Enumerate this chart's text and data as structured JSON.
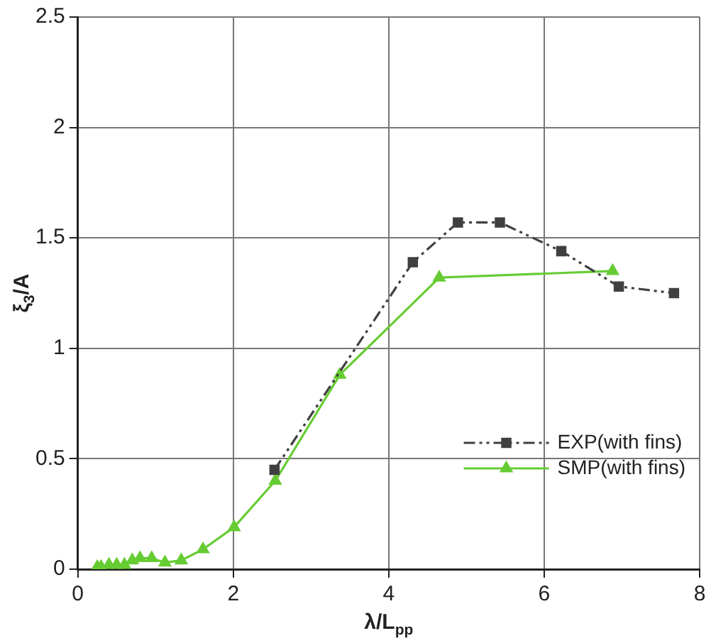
{
  "chart_data": {
    "type": "line",
    "xlabel": "λ/L$_{pp}$",
    "ylabel": "ξ$_{3}$/A",
    "xlim": [
      0,
      8
    ],
    "xticks": [
      0,
      2,
      4,
      6,
      8
    ],
    "ylim": [
      0,
      2.5
    ],
    "yticks": [
      0,
      0.5,
      1,
      1.5,
      2,
      2.5
    ],
    "grid": true,
    "legend": "bottom right",
    "series": [
      {
        "name": "EXP(with fins)",
        "color": "#404040",
        "marker": "square",
        "line_style": "dashed",
        "x": [
          2.53,
          4.31,
          4.89,
          5.43,
          6.22,
          6.96,
          7.67
        ],
        "values": [
          0.45,
          1.39,
          1.57,
          1.57,
          1.44,
          1.28,
          1.25
        ]
      },
      {
        "name": "SMP(with fins)",
        "color": "#66cc33",
        "marker": "triangle",
        "line_style": "solid",
        "x": [
          0.25,
          0.3,
          0.4,
          0.5,
          0.6,
          0.7,
          0.8,
          0.95,
          1.12,
          1.33,
          1.61,
          2.01,
          2.54,
          3.37,
          4.65,
          6.88
        ],
        "values": [
          0.01,
          0.01,
          0.02,
          0.02,
          0.02,
          0.04,
          0.05,
          0.05,
          0.03,
          0.04,
          0.09,
          0.19,
          0.4,
          0.88,
          1.32,
          1.35
        ]
      }
    ]
  }
}
